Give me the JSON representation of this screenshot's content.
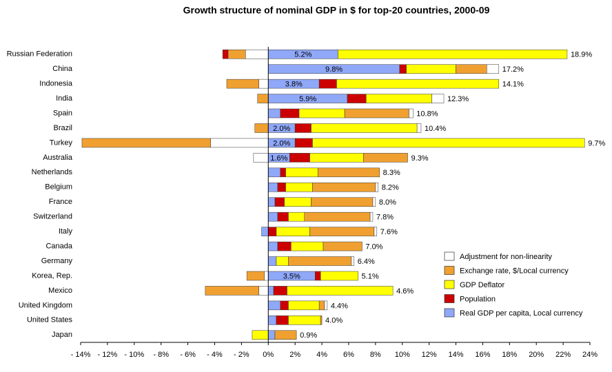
{
  "chart_data": {
    "type": "stacked_bar_horizontal",
    "title": "Growth structure of nominal GDP in $ for top-20 countries, 2000-09",
    "categories": [
      "Russian Federation",
      "China",
      "Indonesia",
      "India",
      "Spain",
      "Brazil",
      "Turkey",
      "Australia",
      "Netherlands",
      "Belgium",
      "France",
      "Switzerland",
      "Italy",
      "Canada",
      "Germany",
      "Korea, Rep.",
      "Mexico",
      "United Kingdom",
      "United States",
      "Japan"
    ],
    "series": [
      {
        "name": "Adjustment for non-linearity",
        "color": "#ffffff",
        "values": [
          -1.7,
          0.9,
          -0.7,
          0.9,
          0.3,
          0.3,
          -4.3,
          -1.1,
          0,
          0.2,
          0.2,
          0.2,
          0.2,
          0,
          0.2,
          -0.3,
          -0.7,
          0.2,
          0,
          0
        ]
      },
      {
        "name": "Exchange rate, $/Local currency",
        "color": "#f0a030",
        "values": [
          -1.3,
          2.3,
          -2.4,
          -0.8,
          4.8,
          -1.0,
          -9.6,
          3.3,
          4.6,
          4.7,
          4.6,
          4.9,
          4.8,
          2.9,
          4.7,
          -1.3,
          -4.0,
          0.4,
          0.1,
          1.6
        ]
      },
      {
        "name": "GDP Deflator",
        "color": "#ffff00",
        "values": [
          17.1,
          3.7,
          12.1,
          4.9,
          3.4,
          7.9,
          20.3,
          4.0,
          2.4,
          2.0,
          2.0,
          1.2,
          2.5,
          2.4,
          0.9,
          2.8,
          7.9,
          2.3,
          2.4,
          -1.2
        ]
      },
      {
        "name": "Population",
        "color": "#cc0000",
        "values": [
          -0.4,
          0.5,
          1.3,
          1.4,
          1.4,
          1.2,
          1.3,
          1.5,
          0.4,
          0.6,
          0.7,
          0.8,
          0.6,
          1.0,
          0,
          0.4,
          1.0,
          0.6,
          0.9,
          0
        ]
      },
      {
        "name": "Real GDP per capita, Local currency",
        "color": "#8fa8f8",
        "values": [
          5.2,
          9.8,
          3.8,
          5.9,
          0.9,
          2.0,
          2.0,
          1.6,
          0.9,
          0.7,
          0.5,
          0.7,
          -0.5,
          0.7,
          0.6,
          3.5,
          0.4,
          0.9,
          0.6,
          0.5
        ],
        "value_labels": [
          "5.2%",
          "9.8%",
          "3.8%",
          "5.9%",
          null,
          "2.0%",
          "2.0%",
          "1.6%",
          null,
          null,
          null,
          null,
          null,
          null,
          null,
          "3.5%",
          null,
          null,
          null,
          null
        ]
      }
    ],
    "totals": [
      18.9,
      17.2,
      14.1,
      12.3,
      10.8,
      10.4,
      9.7,
      9.3,
      8.3,
      8.2,
      8.0,
      7.8,
      7.6,
      7.0,
      6.4,
      5.1,
      4.6,
      4.4,
      4.0,
      0.9
    ],
    "total_labels": [
      "18.9%",
      "17.2%",
      "14.1%",
      "12.3%",
      "10.8%",
      "10.4%",
      "9.7%",
      "9.3%",
      "8.3%",
      "8.2%",
      "8.0%",
      "7.8%",
      "7.6%",
      "7.0%",
      "6.4%",
      "5.1%",
      "4.6%",
      "4.4%",
      "4.0%",
      "0.9%"
    ],
    "xlim": [
      -14,
      24
    ],
    "xticks": [
      {
        "value": -14,
        "label": "- 14%"
      },
      {
        "value": -12,
        "label": "- 12%"
      },
      {
        "value": -10,
        "label": "- 10%"
      },
      {
        "value": -8,
        "label": "- 8%"
      },
      {
        "value": -6,
        "label": "- 6%"
      },
      {
        "value": -4,
        "label": "- 4%"
      },
      {
        "value": -2,
        "label": "- 2%"
      },
      {
        "value": 0,
        "label": "0%"
      },
      {
        "value": 2,
        "label": "2%"
      },
      {
        "value": 4,
        "label": "4%"
      },
      {
        "value": 6,
        "label": "6%"
      },
      {
        "value": 8,
        "label": "8%"
      },
      {
        "value": 10,
        "label": "10%"
      },
      {
        "value": 12,
        "label": "12%"
      },
      {
        "value": 14,
        "label": "14%"
      },
      {
        "value": 16,
        "label": "16%"
      },
      {
        "value": 18,
        "label": "18%"
      },
      {
        "value": 20,
        "label": "20%"
      },
      {
        "value": 22,
        "label": "22%"
      },
      {
        "value": 24,
        "label": "24%"
      }
    ],
    "legend": "lower right"
  }
}
